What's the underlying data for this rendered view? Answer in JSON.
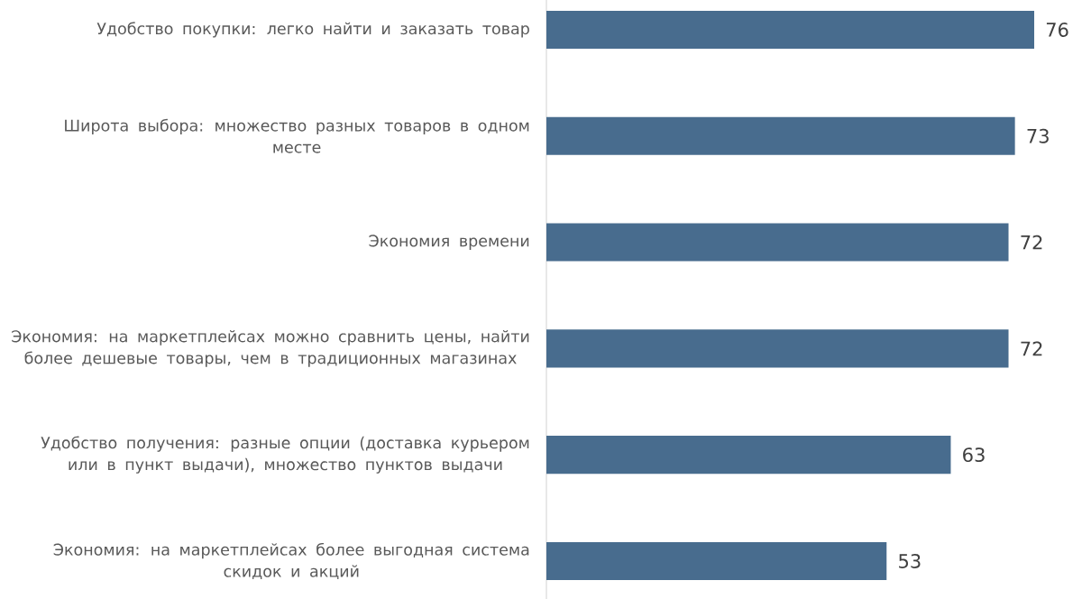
{
  "chart_data": {
    "type": "bar",
    "orientation": "horizontal",
    "categories": [
      "Удобство покупки: легко найти и заказать товар",
      "Широта выбора: множество разных товаров в одном месте",
      "Экономия времени",
      "Экономия: на маркетплейсах можно сравнить цены, найти более дешевые товары, чем в традиционных магазинах",
      "Удобство получения: разные опции (доставка курьером или в пункт выдачи), множество пунктов выдачи",
      "Экономия: на маркетплейсах более выгодная система скидок и акций"
    ],
    "values": [
      76,
      73,
      72,
      72,
      63,
      53
    ],
    "color": "#486c8e",
    "data_labels": true
  }
}
